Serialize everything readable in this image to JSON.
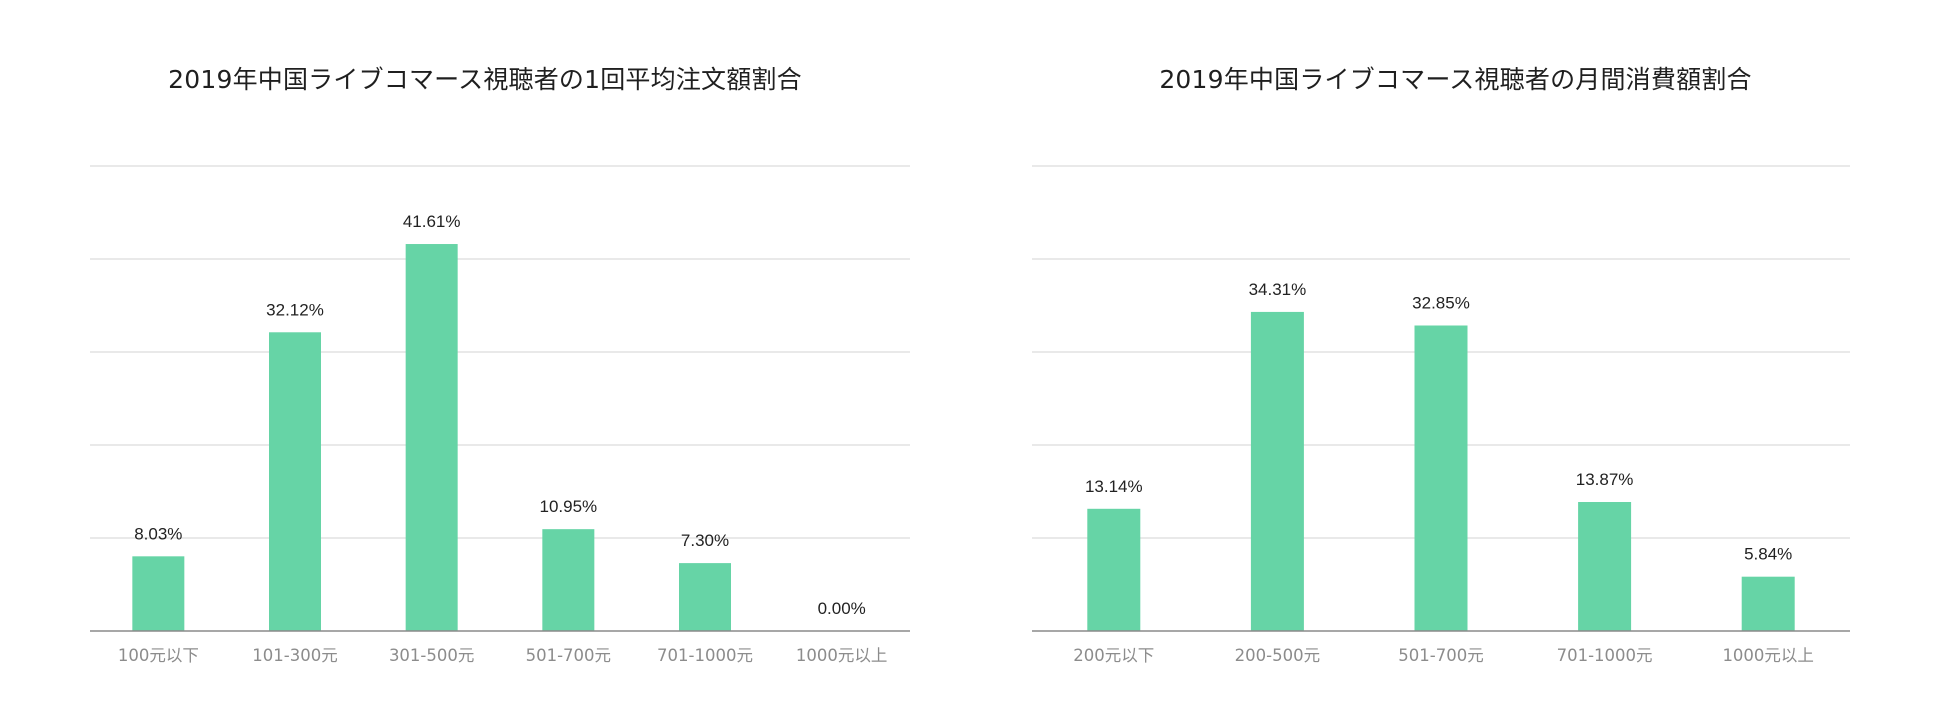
{
  "chart_data": [
    {
      "type": "bar",
      "title": "2019年中国ライブコマース視聴者の1回平均注文額割合",
      "categories": [
        "100元以下",
        "101-300元",
        "301-500元",
        "501-700元",
        "701-1000元",
        "1000元以上"
      ],
      "values": [
        8.03,
        32.12,
        41.61,
        10.95,
        7.3,
        0.0
      ],
      "data_labels": [
        "8.03%",
        "32.12%",
        "41.61%",
        "10.95%",
        "7.30%",
        "0.00%"
      ],
      "ylim": [
        0,
        50
      ],
      "grid": true,
      "color": "#66d4a6"
    },
    {
      "type": "bar",
      "title": "2019年中国ライブコマース視聴者の月間消費額割合",
      "categories": [
        "200元以下",
        "200-500元",
        "501-700元",
        "701-1000元",
        "1000元以上"
      ],
      "values": [
        13.14,
        34.31,
        32.85,
        13.87,
        5.84
      ],
      "data_labels": [
        "13.14%",
        "34.31%",
        "32.85%",
        "13.87%",
        "5.84%"
      ],
      "ylim": [
        0,
        50
      ],
      "grid": true,
      "color": "#66d4a6"
    }
  ]
}
